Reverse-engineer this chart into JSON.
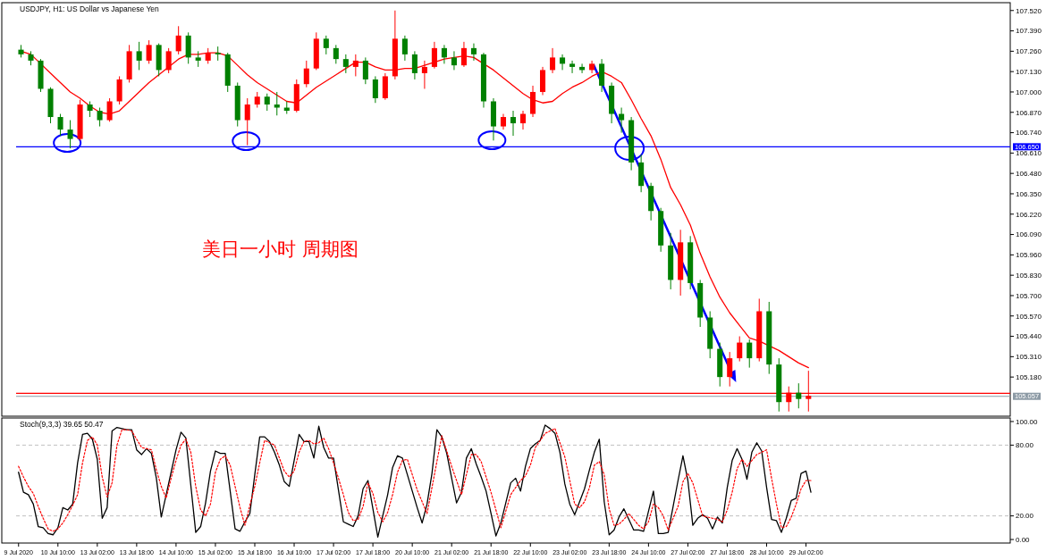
{
  "chart_data": [
    {
      "type": "candlestick",
      "title": "USDJPY, H1:  US Dollar vs Japanese Yen",
      "annotations": [
        "美日一小时  周期图"
      ],
      "categories": [
        null,
        null,
        null,
        null,
        null,
        null,
        null,
        null,
        null,
        null,
        null,
        null,
        null,
        null,
        null,
        null,
        null,
        null,
        null,
        null,
        null,
        null,
        null,
        null,
        null,
        null,
        null,
        null,
        null,
        null,
        null,
        null,
        null,
        null,
        null,
        null,
        null,
        null,
        null,
        null,
        null,
        null,
        null,
        null,
        null,
        null,
        null,
        null,
        null,
        null,
        null,
        null,
        null,
        null,
        null,
        null,
        null,
        null,
        null,
        null,
        null,
        null,
        null,
        null,
        null,
        null,
        null,
        null,
        null,
        null,
        null,
        null,
        null,
        null,
        null,
        null,
        null,
        null,
        null,
        null,
        null,
        null,
        null,
        null,
        null,
        null,
        null,
        null,
        null,
        null,
        null,
        null,
        null,
        null,
        null,
        null,
        null,
        null,
        null,
        null,
        null
      ],
      "ohlc": [
        [
          107.27,
          107.3,
          107.22,
          107.24
        ],
        [
          107.24,
          107.26,
          107.17,
          107.2
        ],
        [
          107.2,
          107.21,
          107.0,
          107.02
        ],
        [
          107.02,
          107.03,
          106.8,
          106.84
        ],
        [
          106.84,
          106.86,
          106.72,
          106.76
        ],
        [
          106.76,
          106.82,
          106.64,
          106.7
        ],
        [
          106.7,
          106.95,
          106.69,
          106.92
        ],
        [
          106.92,
          106.94,
          106.84,
          106.88
        ],
        [
          106.88,
          106.9,
          106.78,
          106.82
        ],
        [
          106.82,
          106.96,
          106.81,
          106.94
        ],
        [
          106.94,
          107.1,
          106.92,
          107.08
        ],
        [
          107.08,
          107.3,
          107.06,
          107.26
        ],
        [
          107.26,
          107.32,
          107.14,
          107.2
        ],
        [
          107.2,
          107.33,
          107.18,
          107.3
        ],
        [
          107.3,
          107.31,
          107.1,
          107.14
        ],
        [
          107.14,
          107.28,
          107.12,
          107.26
        ],
        [
          107.26,
          107.42,
          107.24,
          107.36
        ],
        [
          107.36,
          107.38,
          107.18,
          107.22
        ],
        [
          107.22,
          107.26,
          107.16,
          107.2
        ],
        [
          107.2,
          107.28,
          107.18,
          107.25
        ],
        [
          107.25,
          107.29,
          107.2,
          107.24
        ],
        [
          107.24,
          107.25,
          107.0,
          107.04
        ],
        [
          107.04,
          107.06,
          106.78,
          106.82
        ],
        [
          106.82,
          106.96,
          106.66,
          106.92
        ],
        [
          106.92,
          107.0,
          106.9,
          106.97
        ],
        [
          106.97,
          106.99,
          106.88,
          106.92
        ],
        [
          106.92,
          107.0,
          106.85,
          106.9
        ],
        [
          106.9,
          106.94,
          106.86,
          106.88
        ],
        [
          106.88,
          107.08,
          106.87,
          107.05
        ],
        [
          107.05,
          107.2,
          107.03,
          107.15
        ],
        [
          107.15,
          107.38,
          107.14,
          107.34
        ],
        [
          107.34,
          107.36,
          107.24,
          107.28
        ],
        [
          107.28,
          107.3,
          107.18,
          107.21
        ],
        [
          107.21,
          107.24,
          107.12,
          107.16
        ],
        [
          107.16,
          107.24,
          107.1,
          107.2
        ],
        [
          107.2,
          107.22,
          107.05,
          107.08
        ],
        [
          107.08,
          107.1,
          106.93,
          106.96
        ],
        [
          106.96,
          107.12,
          106.95,
          107.1
        ],
        [
          107.1,
          107.52,
          107.08,
          107.34
        ],
        [
          107.34,
          107.36,
          107.2,
          107.24
        ],
        [
          107.24,
          107.26,
          107.08,
          107.12
        ],
        [
          107.12,
          107.2,
          107.02,
          107.16
        ],
        [
          107.16,
          107.32,
          107.15,
          107.28
        ],
        [
          107.28,
          107.3,
          107.18,
          107.22
        ],
        [
          107.22,
          107.26,
          107.14,
          107.17
        ],
        [
          107.17,
          107.32,
          107.16,
          107.28
        ],
        [
          107.28,
          107.31,
          107.2,
          107.24
        ],
        [
          107.24,
          107.25,
          106.9,
          106.94
        ],
        [
          106.94,
          106.96,
          106.69,
          106.78
        ],
        [
          106.78,
          106.86,
          106.76,
          106.84
        ],
        [
          106.84,
          106.88,
          106.72,
          106.8
        ],
        [
          106.8,
          106.88,
          106.76,
          106.86
        ],
        [
          106.86,
          107.04,
          106.84,
          107.0
        ],
        [
          107.0,
          107.16,
          106.98,
          107.14
        ],
        [
          107.14,
          107.28,
          107.12,
          107.22
        ],
        [
          107.22,
          107.24,
          107.14,
          107.18
        ],
        [
          107.18,
          107.2,
          107.12,
          107.16
        ],
        [
          107.16,
          107.18,
          107.12,
          107.14
        ],
        [
          107.14,
          107.2,
          107.12,
          107.18
        ],
        [
          107.18,
          107.21,
          107.0,
          107.04
        ],
        [
          107.04,
          107.06,
          106.8,
          106.86
        ],
        [
          106.86,
          106.9,
          106.74,
          106.82
        ],
        [
          106.82,
          106.84,
          106.5,
          106.55
        ],
        [
          106.55,
          106.6,
          106.36,
          106.4
        ],
        [
          106.4,
          106.42,
          106.18,
          106.24
        ],
        [
          106.24,
          106.26,
          105.98,
          106.02
        ],
        [
          106.02,
          106.1,
          105.74,
          105.8
        ],
        [
          105.8,
          106.12,
          105.7,
          106.04
        ],
        [
          106.04,
          106.08,
          105.74,
          105.78
        ],
        [
          105.78,
          105.8,
          105.5,
          105.56
        ],
        [
          105.56,
          105.6,
          105.3,
          105.36
        ],
        [
          105.36,
          105.4,
          105.12,
          105.18
        ],
        [
          105.18,
          105.34,
          105.12,
          105.3
        ],
        [
          105.3,
          105.44,
          105.28,
          105.4
        ],
        [
          105.4,
          105.42,
          105.24,
          105.3
        ],
        [
          105.3,
          105.68,
          105.28,
          105.6
        ],
        [
          105.6,
          105.66,
          105.2,
          105.26
        ],
        [
          105.26,
          105.3,
          104.96,
          105.02
        ],
        [
          105.02,
          105.12,
          104.96,
          105.08
        ],
        [
          105.08,
          105.14,
          104.98,
          105.04
        ],
        [
          105.04,
          105.22,
          104.96,
          105.06
        ],
        null,
        null,
        null,
        null,
        null,
        null,
        null,
        null,
        null,
        null,
        null,
        null,
        null,
        null,
        null,
        null,
        null,
        null,
        null,
        null
      ],
      "colors": [
        "#008000",
        "#008000",
        "#008000",
        "#008000",
        "#008000",
        "#008000",
        "#ff0000",
        "#008000",
        "#008000",
        "#ff0000",
        "#ff0000",
        "#ff0000",
        "#008000",
        "#ff0000",
        "#008000",
        "#ff0000",
        "#ff0000",
        "#008000",
        "#008000",
        "#ff0000",
        "#008000",
        "#008000",
        "#008000",
        "#ff0000",
        "#ff0000",
        "#008000",
        "#008000",
        "#008000",
        "#ff0000",
        "#ff0000",
        "#ff0000",
        "#008000",
        "#008000",
        "#008000",
        "#ff0000",
        "#008000",
        "#008000",
        "#ff0000",
        "#ff0000",
        "#008000",
        "#008000",
        "#ff0000",
        "#ff0000",
        "#008000",
        "#008000",
        "#ff0000",
        "#008000",
        "#008000",
        "#008000",
        "#ff0000",
        "#008000",
        "#ff0000",
        "#ff0000",
        "#ff0000",
        "#ff0000",
        "#008000",
        "#008000",
        "#008000",
        "#ff0000",
        "#008000",
        "#008000",
        "#008000",
        "#008000",
        "#008000",
        "#008000",
        "#008000",
        "#008000",
        "#ff0000",
        "#008000",
        "#008000",
        "#008000",
        "#008000",
        "#ff0000",
        "#ff0000",
        "#008000",
        "#ff0000",
        "#008000",
        "#008000",
        "#ff0000",
        "#008000",
        "#ff0000",
        null,
        null,
        null,
        null,
        null,
        null,
        null,
        null,
        null,
        null,
        null,
        null,
        null,
        null,
        null,
        null,
        null,
        null,
        null,
        null
      ],
      "series": [
        {
          "type": "line",
          "color": "#ff0000",
          "values": [
            107.26,
            107.24,
            107.18,
            107.12,
            107.06,
            107.0,
            106.96,
            106.91,
            106.87,
            106.86,
            106.88,
            106.94,
            107.0,
            107.06,
            107.11,
            107.16,
            107.21,
            107.24,
            107.24,
            107.25,
            107.25,
            107.23,
            107.17,
            107.11,
            107.06,
            107.02,
            106.98,
            106.94,
            106.93,
            106.98,
            107.03,
            107.07,
            107.11,
            107.15,
            107.19,
            107.19,
            107.16,
            107.14,
            107.14,
            107.15,
            107.15,
            107.17,
            107.19,
            107.21,
            107.22,
            107.23,
            107.22,
            107.18,
            107.14,
            107.09,
            107.04,
            106.99,
            106.95,
            106.93,
            106.94,
            106.99,
            107.03,
            107.06,
            107.1,
            107.13,
            107.1,
            107.06,
            106.95,
            106.83,
            106.72,
            106.57,
            106.39,
            106.28,
            106.15,
            105.97,
            105.82,
            105.69,
            105.59,
            105.51,
            105.43,
            105.41,
            105.38,
            105.35,
            105.31,
            105.27,
            105.24,
            null,
            null,
            null,
            null,
            null,
            null,
            null,
            null,
            null,
            null,
            null,
            null,
            null,
            null,
            null,
            null,
            null,
            null,
            null,
            null
          ]
        }
      ],
      "ylim": [
        104.93,
        107.57
      ],
      "yticks": [
        {
          "value": 107.52,
          "label": "107.520"
        },
        {
          "value": 107.39,
          "label": "107.390"
        },
        {
          "value": 107.26,
          "label": "107.260"
        },
        {
          "value": 107.13,
          "label": "107.130"
        },
        {
          "value": 107.0,
          "label": "107.000"
        },
        {
          "value": 106.87,
          "label": "106.870"
        },
        {
          "value": 106.74,
          "label": "106.740"
        },
        {
          "value": 106.61,
          "label": "106.610"
        },
        {
          "value": 106.48,
          "label": "106.480"
        },
        {
          "value": 106.35,
          "label": "106.350"
        },
        {
          "value": 106.22,
          "label": "106.220"
        },
        {
          "value": 106.09,
          "label": "106.090"
        },
        {
          "value": 105.96,
          "label": "105.960"
        },
        {
          "value": 105.83,
          "label": "105.830"
        },
        {
          "value": 105.7,
          "label": "105.700"
        },
        {
          "value": 105.57,
          "label": "105.570"
        },
        {
          "value": 105.44,
          "label": "105.440"
        },
        {
          "value": 105.31,
          "label": "105.310"
        },
        {
          "value": 105.18,
          "label": "105.180"
        }
      ],
      "ref_lines": [
        {
          "axis": "y",
          "value": 106.65,
          "label": "106.650",
          "color": "#0000ff"
        },
        {
          "axis": "y",
          "value": 105.076,
          "label": null,
          "color": "#ff0000"
        },
        {
          "axis": "y",
          "value": 105.057,
          "label": "105.057",
          "color": "#8c9aa5"
        }
      ],
      "tick_labels": "y"
    },
    {
      "type": "line",
      "title": "Stoch(9,3,3) 39.65 50.47",
      "categories": [
        "9 Jul 2020",
        null,
        null,
        null,
        null,
        null,
        null,
        null,
        "10 Jul 10:00",
        null,
        null,
        null,
        null,
        null,
        null,
        null,
        "13 Jul 02:00",
        null,
        null,
        null,
        null,
        null,
        null,
        null,
        "13 Jul 18:00",
        null,
        null,
        null,
        null,
        null,
        null,
        null,
        "14 Jul 10:00",
        null,
        null,
        null,
        null,
        null,
        null,
        null,
        "15 Jul 02:00",
        null,
        null,
        null,
        null,
        null,
        null,
        null,
        "15 Jul 18:00",
        null,
        null,
        null,
        null,
        null,
        null,
        null,
        "16 Jul 10:00",
        null,
        null,
        null,
        null,
        null,
        null,
        null,
        "17 Jul 02:00",
        null,
        null,
        null,
        null,
        null,
        null,
        null,
        "17 Jul 18:00",
        null,
        null,
        null,
        null,
        null,
        null,
        null,
        "20 Jul 10:00",
        null,
        null,
        null,
        null,
        null,
        null,
        null,
        "21 Jul 02:00",
        null,
        null,
        null,
        null,
        null,
        null,
        null,
        "21 Jul 18:00",
        null,
        null,
        null,
        null,
        null,
        null,
        null,
        "22 Jul 10:00",
        null,
        null,
        null,
        null,
        null,
        null,
        null,
        "23 Jul 02:00",
        null,
        null,
        null,
        null,
        null,
        null,
        null,
        "23 Jul 18:00",
        null,
        null,
        null,
        null,
        null,
        null,
        null,
        "24 Jul 10:00",
        null,
        null,
        null,
        null,
        null,
        null,
        null,
        "27 Jul 02:00",
        null,
        null,
        null,
        null,
        null,
        null,
        null,
        "27 Jul 18:00",
        null,
        null,
        null,
        null,
        null,
        null,
        null,
        "28 Jul 10:00",
        null,
        null,
        null,
        null,
        null,
        null,
        null,
        "29 Jul 02:00",
        null,
        null,
        null,
        null,
        null,
        null,
        null,
        null,
        null,
        null,
        null,
        null,
        null,
        null,
        null,
        null,
        null,
        null,
        null,
        null,
        null,
        null,
        null,
        null,
        null,
        null,
        null,
        null,
        null,
        null,
        null,
        null,
        null,
        null,
        null,
        null,
        null,
        null,
        null,
        null,
        null
      ],
      "series": [
        {
          "color": "#000000",
          "line_style": "solid",
          "values": [
            57,
            40,
            38,
            30,
            11,
            10,
            5,
            4,
            10,
            27,
            25,
            30,
            65,
            89,
            90,
            85,
            68,
            18,
            27,
            92,
            95,
            94,
            93,
            93,
            76,
            72,
            77,
            73,
            52,
            19,
            38,
            57,
            76,
            91,
            86,
            46,
            6,
            11,
            31,
            58,
            75,
            73,
            73,
            41,
            9,
            7,
            15,
            22,
            55,
            87,
            87,
            83,
            74,
            63,
            49,
            45,
            67,
            89,
            83,
            83,
            69,
            96,
            78,
            69,
            69,
            42,
            15,
            13,
            11,
            20,
            43,
            50,
            26,
            2,
            20,
            38,
            61,
            71,
            69,
            55,
            41,
            27,
            14,
            30,
            56,
            93,
            87,
            73,
            52,
            31,
            40,
            69,
            77,
            64,
            53,
            41,
            22,
            3,
            14,
            31,
            48,
            52,
            41,
            62,
            77,
            81,
            84,
            97,
            94,
            90,
            74,
            47,
            30,
            21,
            32,
            43,
            59,
            74,
            85,
            32,
            4,
            8,
            19,
            26,
            17,
            8,
            8,
            7,
            24,
            41,
            5,
            5,
            6,
            28,
            50,
            71,
            50,
            12,
            18,
            21,
            18,
            9,
            19,
            14,
            44,
            67,
            77,
            68,
            51,
            74,
            82,
            75,
            44,
            17,
            16,
            6,
            18,
            33,
            35,
            56,
            58,
            40,
            null,
            null,
            null,
            null,
            null,
            null,
            null,
            null,
            null,
            null,
            null,
            null,
            null,
            null,
            null,
            null,
            null,
            null,
            null,
            null,
            null,
            null,
            null,
            null,
            null,
            null,
            null,
            null,
            null,
            null,
            null,
            null,
            null,
            null,
            null,
            null,
            null,
            null,
            null,
            null
          ]
        },
        {
          "color": "#ff0000",
          "line_style": "dotted",
          "values": [
            62,
            53,
            45,
            39,
            28,
            18,
            9,
            7,
            9,
            14,
            21,
            29,
            38,
            65,
            84,
            87,
            80,
            53,
            36,
            48,
            80,
            93,
            93,
            92,
            85,
            78,
            77,
            76,
            59,
            45,
            35,
            52,
            67,
            80,
            85,
            74,
            45,
            25,
            20,
            30,
            57,
            68,
            71,
            63,
            45,
            27,
            12,
            29,
            45,
            65,
            84,
            82,
            80,
            69,
            58,
            53,
            58,
            74,
            83,
            84,
            81,
            82,
            86,
            77,
            65,
            52,
            38,
            23,
            16,
            17,
            28,
            48,
            39,
            23,
            15,
            23,
            38,
            57,
            67,
            68,
            55,
            42,
            32,
            22,
            44,
            66,
            88,
            75,
            62,
            50,
            38,
            55,
            72,
            72,
            66,
            53,
            40,
            25,
            10,
            24,
            38,
            44,
            50,
            54,
            63,
            78,
            84,
            90,
            92,
            94,
            82,
            70,
            50,
            30,
            27,
            32,
            44,
            63,
            66,
            55,
            26,
            12,
            13,
            17,
            22,
            17,
            12,
            9,
            15,
            30,
            27,
            20,
            8,
            18,
            28,
            49,
            56,
            48,
            34,
            20,
            19,
            18,
            17,
            15,
            25,
            40,
            60,
            68,
            62,
            67,
            72,
            74,
            76,
            52,
            30,
            10,
            11,
            19,
            30,
            43,
            50,
            50,
            null,
            null,
            null,
            null,
            null,
            null,
            null,
            null,
            null,
            null,
            null,
            null,
            null,
            null,
            null,
            null,
            null,
            null,
            null,
            null,
            null,
            null,
            null,
            null,
            null,
            null,
            null,
            null,
            null,
            null,
            null,
            null,
            null,
            null,
            null,
            null,
            null,
            null,
            null,
            null
          ]
        }
      ],
      "ylim": [
        -3,
        103
      ],
      "yticks": [
        {
          "value": 100,
          "label": "100.00"
        },
        {
          "value": 80,
          "label": "80.00"
        },
        {
          "value": 20,
          "label": "20.00"
        },
        {
          "value": 0,
          "label": "0.00"
        }
      ],
      "ref_lines": [
        {
          "axis": "y",
          "value": 80,
          "label": null,
          "color": "#b0b0b0",
          "line_style": "dashed"
        },
        {
          "axis": "y",
          "value": 20,
          "label": null,
          "color": "#b0b0b0",
          "line_style": "dashed"
        }
      ]
    }
  ]
}
